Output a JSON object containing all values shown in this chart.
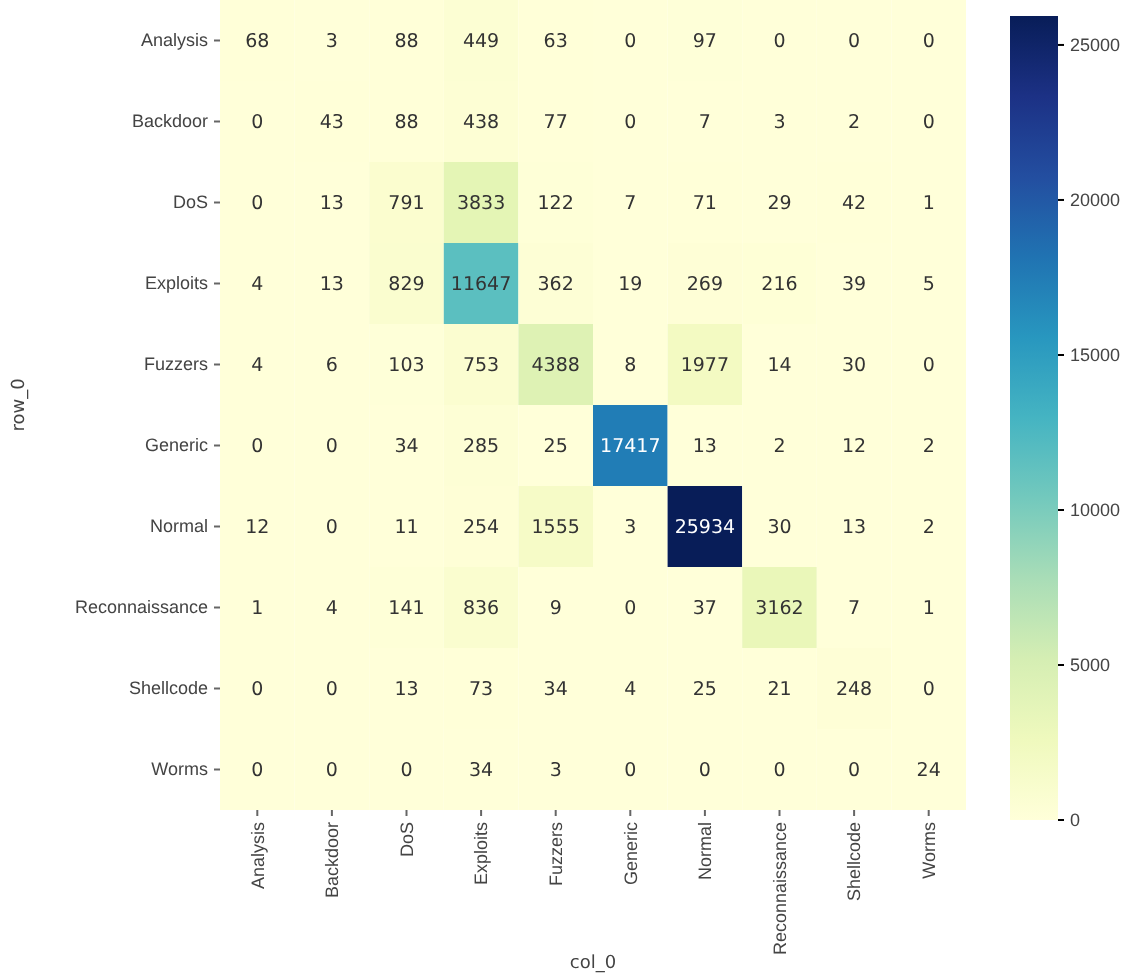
{
  "chart_data": {
    "type": "heatmap",
    "xlabel": "col_0",
    "ylabel": "row_0",
    "categories": [
      "Analysis",
      "Backdoor",
      "DoS",
      "Exploits",
      "Fuzzers",
      "Generic",
      "Normal",
      "Reconnaissance",
      "Shellcode",
      "Worms"
    ],
    "y_categories": [
      "Analysis",
      "Backdoor",
      "DoS",
      "Exploits",
      "Fuzzers",
      "Generic",
      "Normal",
      "Reconnaissance",
      "Shellcode",
      "Worms"
    ],
    "cells": [
      [
        68,
        3,
        88,
        449,
        63,
        0,
        97,
        0,
        0,
        0
      ],
      [
        0,
        43,
        88,
        438,
        77,
        0,
        7,
        3,
        2,
        0
      ],
      [
        0,
        13,
        791,
        3833,
        122,
        7,
        71,
        29,
        42,
        1
      ],
      [
        4,
        13,
        829,
        11647,
        362,
        19,
        269,
        216,
        39,
        5
      ],
      [
        4,
        6,
        103,
        753,
        4388,
        8,
        1977,
        14,
        30,
        0
      ],
      [
        0,
        0,
        34,
        285,
        25,
        17417,
        13,
        2,
        12,
        2
      ],
      [
        12,
        0,
        11,
        254,
        1555,
        3,
        25934,
        30,
        13,
        2
      ],
      [
        1,
        4,
        141,
        836,
        9,
        0,
        37,
        3162,
        7,
        1
      ],
      [
        0,
        0,
        13,
        73,
        34,
        4,
        25,
        21,
        248,
        0
      ],
      [
        0,
        0,
        0,
        34,
        3,
        0,
        0,
        0,
        0,
        24
      ]
    ],
    "clim": [
      0,
      25934
    ],
    "cticks": [
      0,
      5000,
      10000,
      15000,
      20000,
      25000
    ],
    "data_labels": true
  }
}
